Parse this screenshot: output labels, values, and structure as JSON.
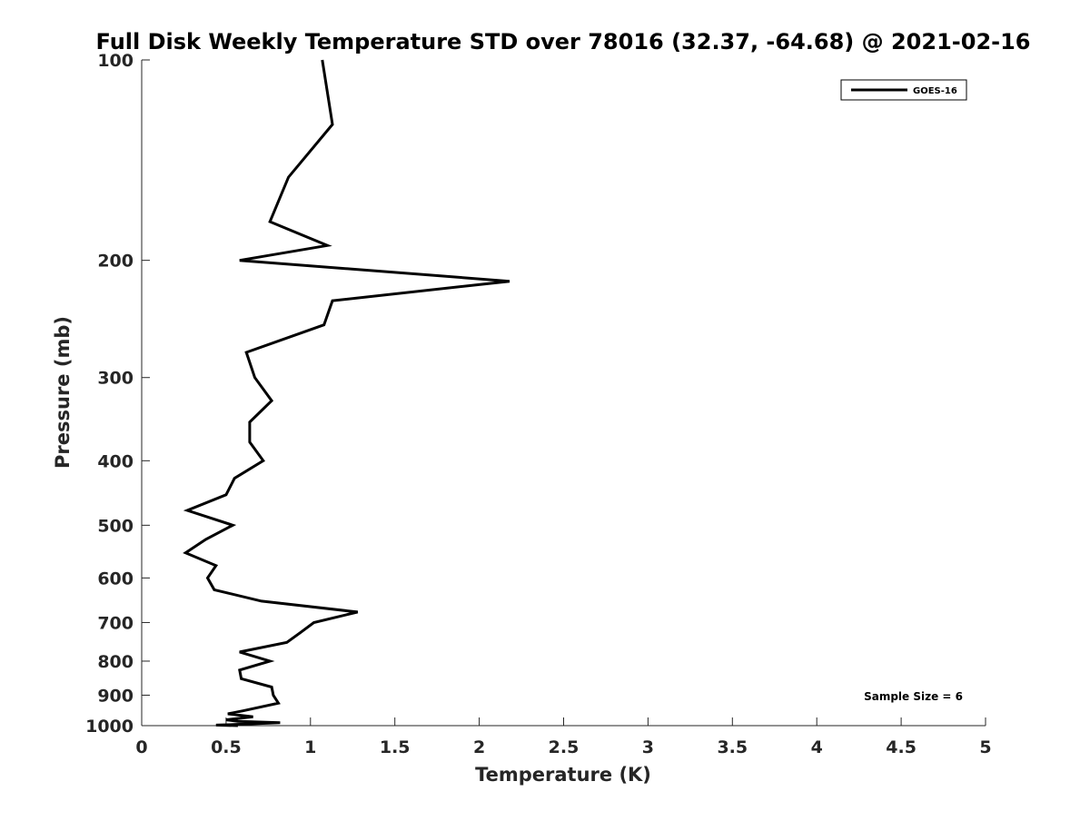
{
  "chart_data": {
    "type": "line",
    "title": "Full Disk Weekly Temperature STD over 78016 (32.37, -64.68) @ 2021-02-16",
    "xlabel": "Temperature (K)",
    "ylabel": "Pressure (mb)",
    "xlim": [
      0,
      5
    ],
    "ylim": [
      100,
      1000
    ],
    "y_scale": "log",
    "y_reversed": true,
    "x_ticks": [
      "0",
      "0.5",
      "1",
      "1.5",
      "2",
      "2.5",
      "3",
      "3.5",
      "4",
      "4.5",
      "5"
    ],
    "y_ticks": [
      "100",
      "200",
      "300",
      "400",
      "500",
      "600",
      "700",
      "800",
      "900",
      "1000"
    ],
    "x_tick_values": [
      0,
      0.5,
      1,
      1.5,
      2,
      2.5,
      3,
      3.5,
      4,
      4.5,
      5
    ],
    "y_tick_values": [
      100,
      200,
      300,
      400,
      500,
      600,
      700,
      800,
      900,
      1000
    ],
    "grid": false,
    "legend_position": "top-right",
    "annotation": "Sample Size = 6",
    "series": [
      {
        "name": "GOES-16",
        "color": "#000000",
        "points": [
          [
            1.07,
            100
          ],
          [
            1.13,
            125
          ],
          [
            0.87,
            150
          ],
          [
            0.76,
            175
          ],
          [
            1.1,
            190
          ],
          [
            0.58,
            200
          ],
          [
            2.18,
            215
          ],
          [
            1.13,
            230
          ],
          [
            1.08,
            250
          ],
          [
            0.62,
            275
          ],
          [
            0.67,
            300
          ],
          [
            0.77,
            325
          ],
          [
            0.64,
            350
          ],
          [
            0.64,
            375
          ],
          [
            0.72,
            400
          ],
          [
            0.55,
            425
          ],
          [
            0.5,
            450
          ],
          [
            0.27,
            475
          ],
          [
            0.54,
            500
          ],
          [
            0.38,
            525
          ],
          [
            0.26,
            550
          ],
          [
            0.44,
            575
          ],
          [
            0.39,
            600
          ],
          [
            0.43,
            625
          ],
          [
            0.71,
            650
          ],
          [
            1.28,
            675
          ],
          [
            1.02,
            700
          ],
          [
            0.94,
            725
          ],
          [
            0.86,
            750
          ],
          [
            0.58,
            775
          ],
          [
            0.76,
            800
          ],
          [
            0.58,
            825
          ],
          [
            0.59,
            850
          ],
          [
            0.77,
            875
          ],
          [
            0.78,
            900
          ],
          [
            0.81,
            925
          ],
          [
            0.6,
            950
          ],
          [
            0.51,
            960
          ],
          [
            0.66,
            970
          ],
          [
            0.5,
            980
          ],
          [
            0.57,
            985
          ],
          [
            0.82,
            990
          ],
          [
            0.6,
            995
          ],
          [
            0.44,
            998
          ],
          [
            0.57,
            1000
          ]
        ]
      }
    ]
  }
}
